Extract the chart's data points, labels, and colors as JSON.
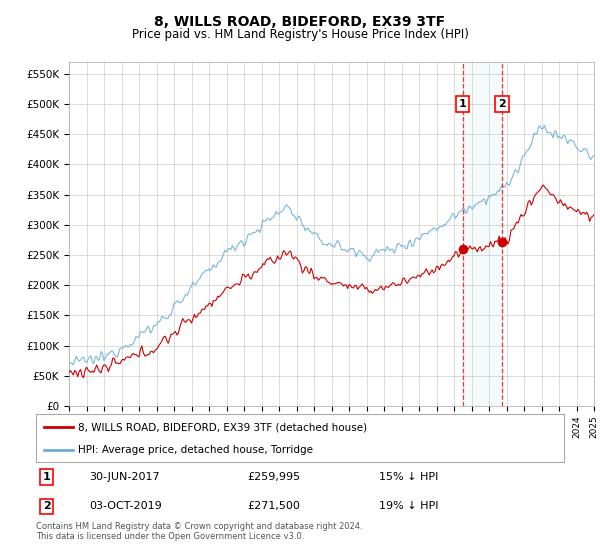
{
  "title": "8, WILLS ROAD, BIDEFORD, EX39 3TF",
  "subtitle": "Price paid vs. HM Land Registry's House Price Index (HPI)",
  "ylim": [
    0,
    570000
  ],
  "yticks": [
    0,
    50000,
    100000,
    150000,
    200000,
    250000,
    300000,
    350000,
    400000,
    450000,
    500000,
    550000
  ],
  "x_start_year": 1995,
  "x_end_year": 2025,
  "hpi_color": "#6baed6",
  "price_color": "#cc0000",
  "sale1_date": 2017.5,
  "sale1_price": 259995,
  "sale2_date": 2019.75,
  "sale2_price": 271500,
  "sale1_info": "30-JUN-2017",
  "sale1_amount": "£259,995",
  "sale1_hpi": "15% ↓ HPI",
  "sale2_info": "03-OCT-2019",
  "sale2_amount": "£271,500",
  "sale2_hpi": "19% ↓ HPI",
  "legend_line1": "8, WILLS ROAD, BIDEFORD, EX39 3TF (detached house)",
  "legend_line2": "HPI: Average price, detached house, Torridge",
  "footer": "Contains HM Land Registry data © Crown copyright and database right 2024.\nThis data is licensed under the Open Government Licence v3.0.",
  "background_color": "#ffffff",
  "grid_color": "#cccccc"
}
